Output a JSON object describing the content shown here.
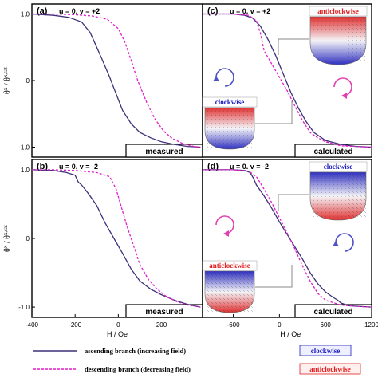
{
  "chart_data": [
    {
      "type": "line",
      "panel": "(a)",
      "params": "u = 0.  v = +2",
      "box_label": "measured",
      "ylabel": "θ*x / θ*x,sat",
      "xlim": [
        -400,
        390
      ],
      "ylim": [
        -1.15,
        1.15
      ],
      "y_ticks": [
        "1.0",
        "0",
        "-1.0"
      ],
      "x_ticks": [],
      "series": [
        {
          "name": "ascending branch  (increasing field)",
          "x": [
            -400,
            -300,
            -230,
            -170,
            -130,
            -100,
            -70,
            -40,
            -10,
            20,
            60,
            100,
            150,
            200,
            260,
            320,
            380
          ],
          "y": [
            1.0,
            0.98,
            0.95,
            0.88,
            0.72,
            0.5,
            0.28,
            0.05,
            -0.2,
            -0.45,
            -0.65,
            -0.78,
            -0.86,
            -0.92,
            -0.96,
            -0.99,
            -1.0
          ]
        },
        {
          "name": "descending branch  (decreasing field)",
          "x": [
            -400,
            -300,
            -200,
            -120,
            -50,
            0,
            30,
            60,
            90,
            130,
            170,
            210,
            250,
            300,
            350,
            380
          ],
          "y": [
            1.0,
            1.0,
            0.99,
            0.97,
            0.92,
            0.78,
            0.58,
            0.3,
            0.0,
            -0.32,
            -0.58,
            -0.76,
            -0.87,
            -0.95,
            -0.99,
            -1.0
          ]
        }
      ]
    },
    {
      "type": "line",
      "panel": "(c)",
      "params": "u = 0.  v = +2",
      "box_label": "calculated",
      "xlim": [
        -1000,
        1200
      ],
      "ylim": [
        -1.15,
        1.15
      ],
      "x_ticks": [],
      "annotations": {
        "top_inset": "anticlockwise",
        "bottom_inset": "clockwise"
      },
      "series": [
        {
          "name": "ascending branch  (increasing field)",
          "x": [
            -1000,
            -800,
            -600,
            -450,
            -350,
            -250,
            -150,
            -50,
            50,
            150,
            250,
            350,
            450,
            600,
            800,
            1000,
            1200
          ],
          "y": [
            1.0,
            1.0,
            1.0,
            0.98,
            0.94,
            0.82,
            0.62,
            0.38,
            0.1,
            -0.18,
            -0.42,
            -0.62,
            -0.78,
            -0.9,
            -0.96,
            -0.99,
            -1.0
          ]
        },
        {
          "name": "descending branch  (decreasing field)",
          "x": [
            -1000,
            -600,
            -400,
            -300,
            -250,
            -200,
            -100,
            0,
            100,
            200,
            300,
            400,
            500,
            600,
            800,
            1200
          ],
          "y": [
            1.0,
            1.0,
            0.98,
            0.9,
            0.72,
            0.45,
            0.25,
            0.05,
            -0.15,
            -0.38,
            -0.6,
            -0.78,
            -0.86,
            -0.92,
            -0.98,
            -1.0
          ]
        }
      ]
    },
    {
      "type": "line",
      "panel": "(b)",
      "params": "u = 0.  v = -2",
      "box_label": "measured",
      "ylabel": "θ*x / θ*x,sat",
      "xlim": [
        -400,
        390
      ],
      "ylim": [
        -1.15,
        1.15
      ],
      "y_ticks": [
        "1.0",
        "0",
        "-1.0"
      ],
      "x_ticks": [
        "-400",
        "-200",
        "0",
        "200"
      ],
      "xlabel": "H / Oe",
      "series": [
        {
          "name": "ascending branch  (increasing field)",
          "x": [
            -400,
            -300,
            -240,
            -200,
            -185,
            -170,
            -140,
            -100,
            -60,
            -20,
            20,
            60,
            100,
            150,
            200,
            260,
            320,
            380
          ],
          "y": [
            1.0,
            0.99,
            0.96,
            0.92,
            0.82,
            0.78,
            0.66,
            0.48,
            0.22,
            0.0,
            -0.22,
            -0.45,
            -0.62,
            -0.74,
            -0.82,
            -0.9,
            -0.96,
            -1.0
          ]
        },
        {
          "name": "descending branch  (decreasing field)",
          "x": [
            -400,
            -300,
            -200,
            -100,
            -40,
            -10,
            10,
            40,
            70,
            100,
            140,
            180,
            220,
            270,
            320,
            380
          ],
          "y": [
            1.0,
            1.0,
            0.99,
            0.96,
            0.9,
            0.72,
            0.5,
            0.18,
            -0.1,
            -0.38,
            -0.6,
            -0.74,
            -0.84,
            -0.92,
            -0.97,
            -1.0
          ]
        }
      ]
    },
    {
      "type": "line",
      "panel": "(d)",
      "params": "u = 0.  v = -2",
      "box_label": "calculated",
      "xlim": [
        -1000,
        1200
      ],
      "ylim": [
        -1.15,
        1.15
      ],
      "x_ticks": [
        "-600",
        "0",
        "600",
        "1200"
      ],
      "xlabel": "H / Oe",
      "annotations": {
        "top_inset": "clockwise",
        "bottom_inset": "anticlockwise"
      },
      "series": [
        {
          "name": "ascending branch  (increasing field)",
          "x": [
            -1000,
            -800,
            -600,
            -450,
            -380,
            -340,
            -300,
            -200,
            -100,
            0,
            100,
            200,
            300,
            400,
            500,
            600,
            700,
            760,
            800,
            900,
            1200
          ],
          "y": [
            1.0,
            1.0,
            1.0,
            0.99,
            0.96,
            0.88,
            0.78,
            0.62,
            0.44,
            0.24,
            0.06,
            -0.12,
            -0.3,
            -0.5,
            -0.66,
            -0.78,
            -0.86,
            -0.9,
            -0.94,
            -0.98,
            -1.0
          ]
        },
        {
          "name": "descending branch  (decreasing field)",
          "x": [
            -1000,
            -600,
            -400,
            -300,
            -200,
            -100,
            0,
            100,
            200,
            300,
            400,
            500,
            600,
            800,
            1000,
            1200
          ],
          "y": [
            1.0,
            1.0,
            0.98,
            0.9,
            0.72,
            0.52,
            0.3,
            0.08,
            -0.15,
            -0.4,
            -0.62,
            -0.8,
            -0.9,
            -0.97,
            -0.99,
            -1.0
          ]
        }
      ]
    }
  ],
  "legend": {
    "ascending": "ascending branch  (increasing field)",
    "descending": "descending branch  (decreasing field)",
    "clockwise": "clockwise",
    "anticlockwise": "anticlockwise"
  },
  "colors": {
    "ascending": "#3d2f78",
    "descending": "#e020c8",
    "clockwise_text": "#2020c0",
    "anticlockwise_text": "#e02020",
    "arrow_blue": "#5050c8",
    "arrow_pink": "#e040b0"
  }
}
